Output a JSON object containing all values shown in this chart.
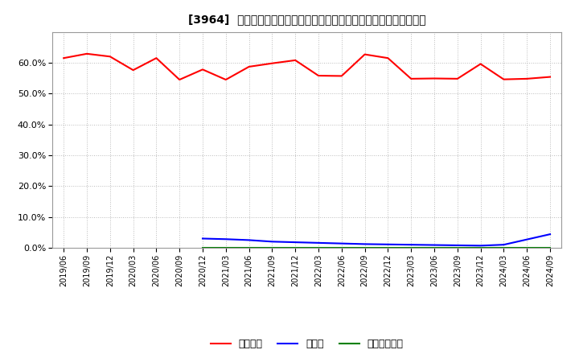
{
  "title": "[3964]  自己資本、のれん、繰延税金資産の総資産に対する比率の推移",
  "x_labels": [
    "2019/06",
    "2019/09",
    "2019/12",
    "2020/03",
    "2020/06",
    "2020/09",
    "2020/12",
    "2021/03",
    "2021/06",
    "2021/09",
    "2021/12",
    "2022/03",
    "2022/06",
    "2022/09",
    "2022/12",
    "2023/03",
    "2023/06",
    "2023/09",
    "2023/12",
    "2024/03",
    "2024/06",
    "2024/09"
  ],
  "equity": [
    0.615,
    0.629,
    0.62,
    0.576,
    0.615,
    0.545,
    0.578,
    0.545,
    0.587,
    0.598,
    0.608,
    0.558,
    0.557,
    0.627,
    0.615,
    0.548,
    0.549,
    0.548,
    0.596,
    0.546,
    0.548,
    0.554
  ],
  "goodwill": [
    null,
    null,
    null,
    null,
    null,
    null,
    0.03,
    0.028,
    0.025,
    0.02,
    0.018,
    0.016,
    0.014,
    0.012,
    0.011,
    0.01,
    0.009,
    0.008,
    0.007,
    0.01,
    0.027,
    0.044
  ],
  "deferred_tax": [
    null,
    null,
    null,
    null,
    null,
    null,
    0.001,
    0.001,
    0.001,
    0.001,
    0.001,
    0.001,
    0.001,
    0.001,
    0.001,
    0.001,
    0.001,
    0.001,
    0.001,
    0.001,
    0.001,
    0.001
  ],
  "equity_color": "#ff0000",
  "goodwill_color": "#0000ff",
  "deferred_tax_color": "#008000",
  "bg_color": "#ffffff",
  "grid_color": "#aaaaaa",
  "legend_equity": "自己資本",
  "legend_goodwill": "のれん",
  "legend_deferred": "繰延税金資産",
  "ylim": [
    0.0,
    0.7
  ],
  "yticks": [
    0.0,
    0.1,
    0.2,
    0.3,
    0.4,
    0.5,
    0.6
  ]
}
